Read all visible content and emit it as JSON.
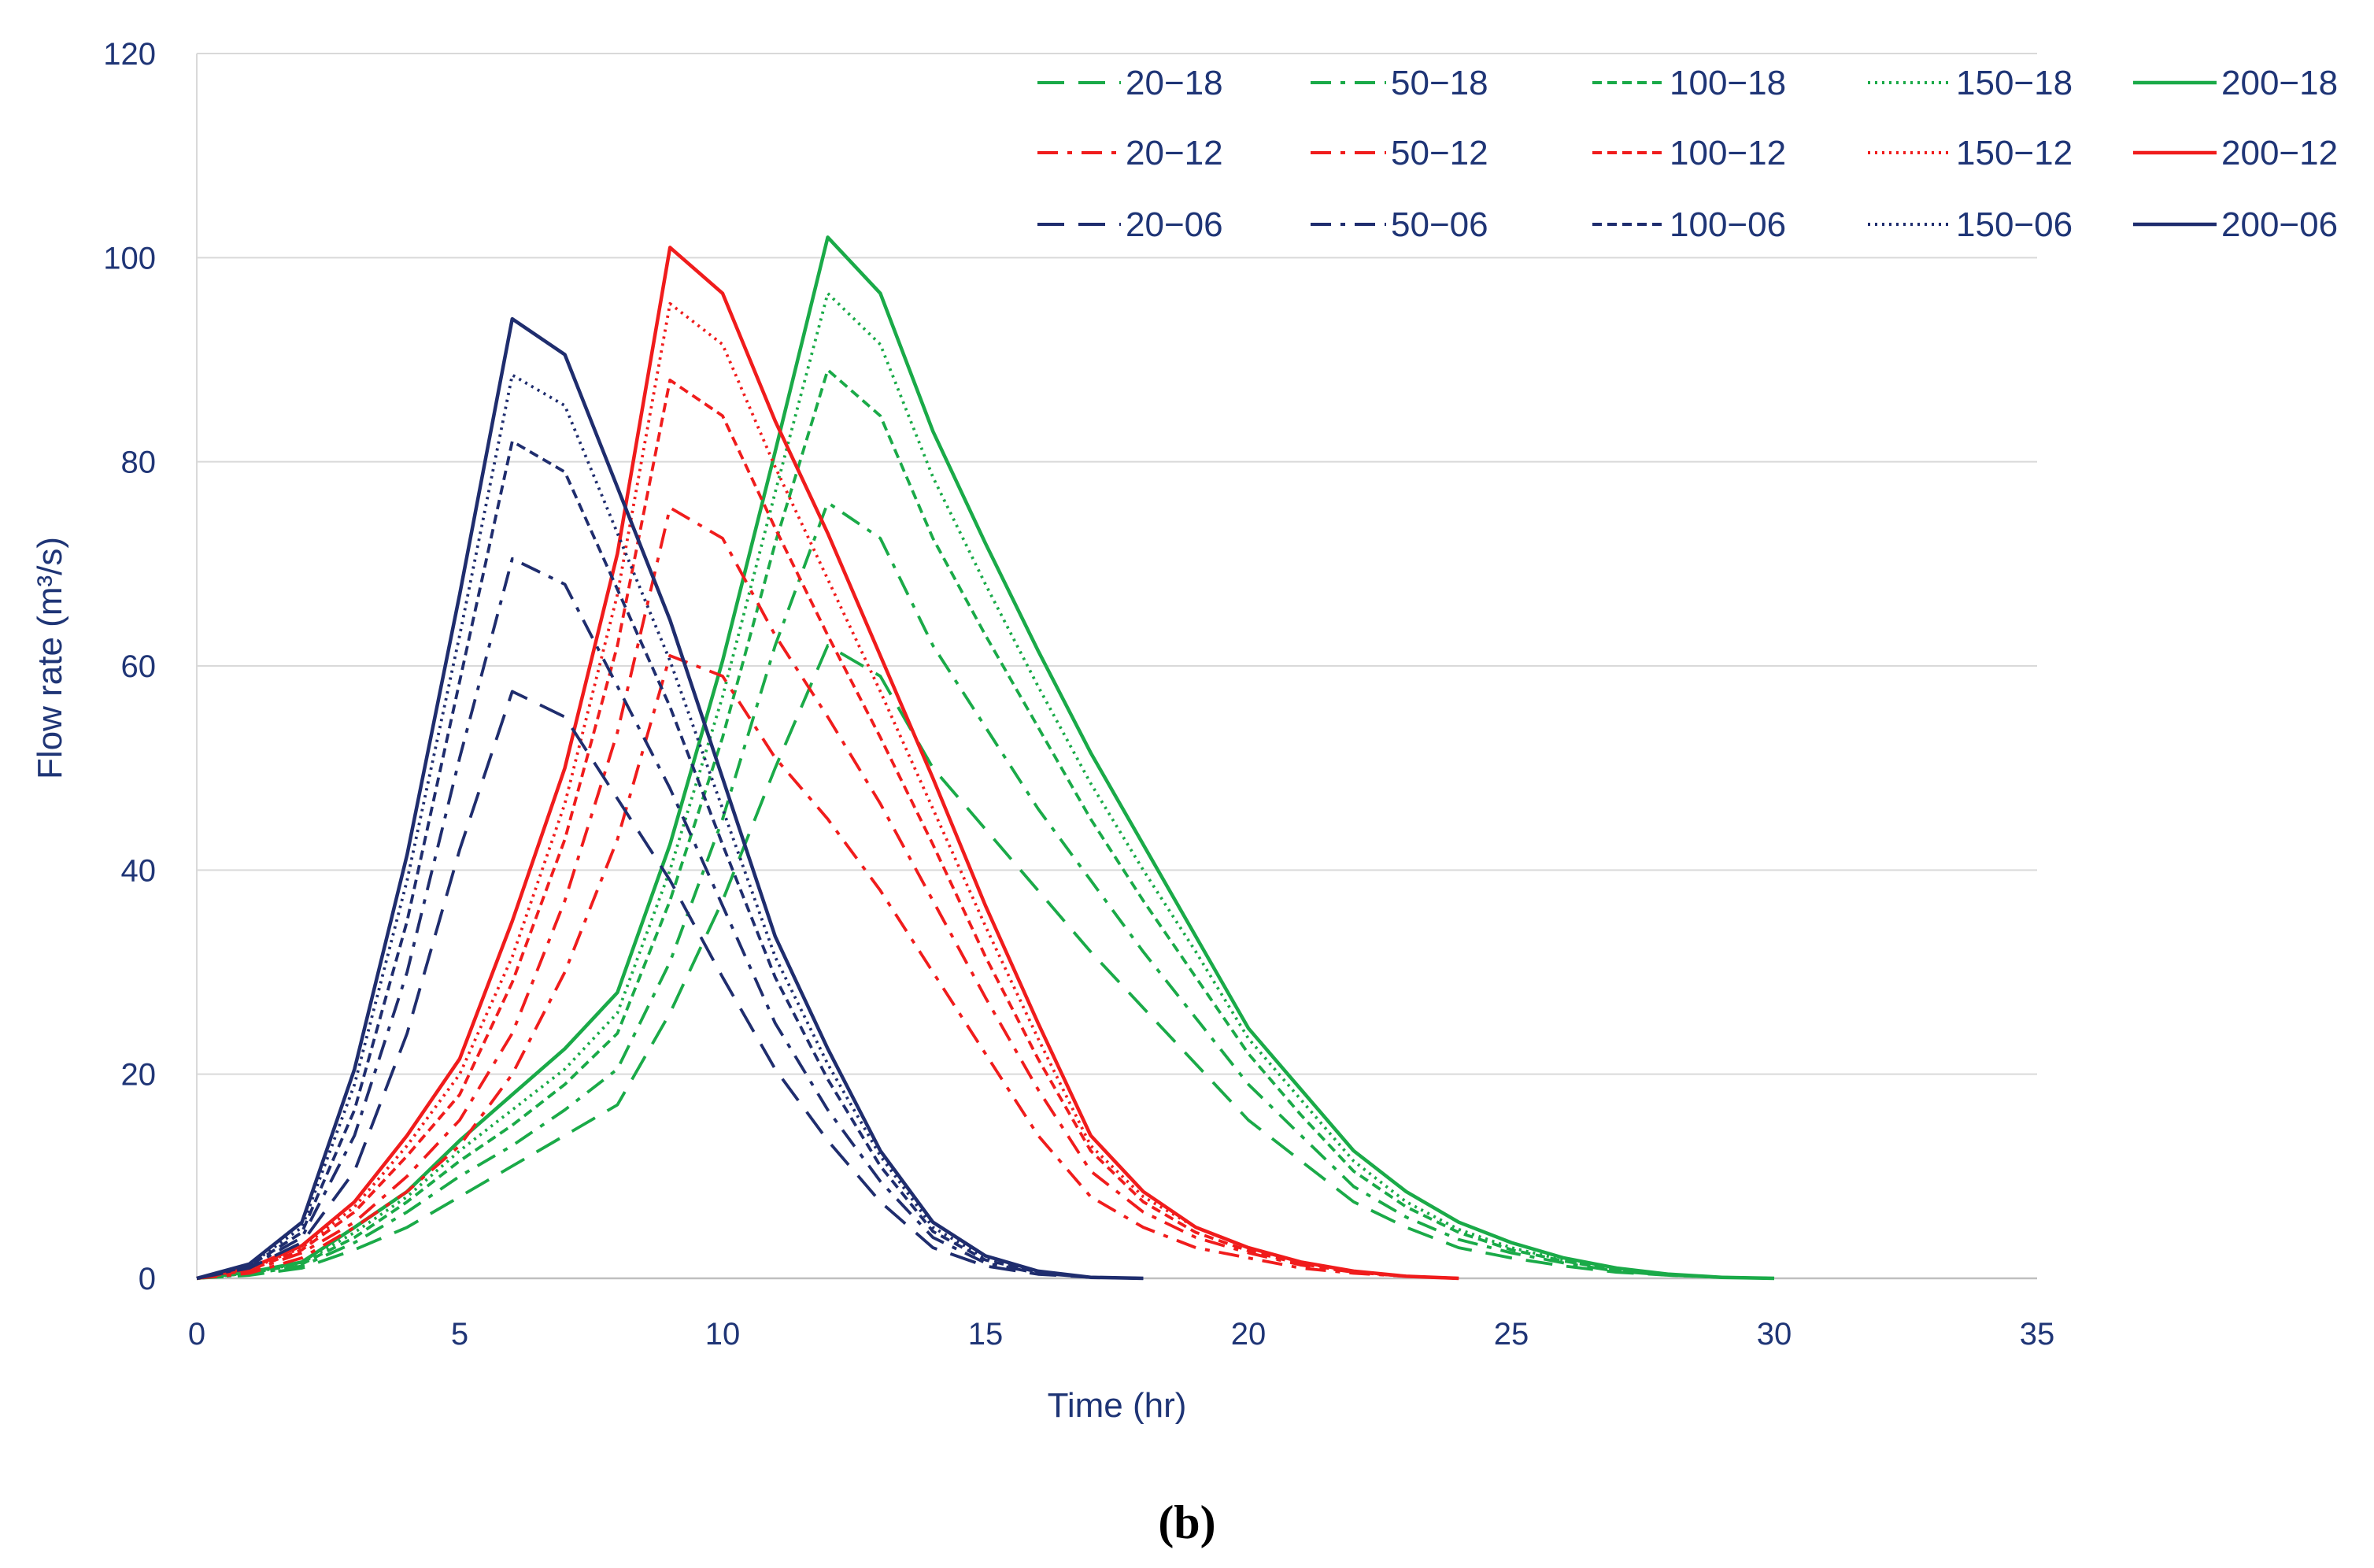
{
  "chart_data": {
    "type": "line",
    "title": "",
    "panel_label": "(b)",
    "xlabel": "Time (hr)",
    "ylabel": "Flow rate (m³/s)",
    "xlim": [
      0,
      35
    ],
    "ylim": [
      0,
      120
    ],
    "xticks": [
      0,
      5,
      10,
      15,
      20,
      25,
      30,
      35
    ],
    "yticks": [
      0,
      20,
      40,
      60,
      80,
      100,
      120
    ],
    "grid": "horizontal",
    "legend_position": "top-right",
    "colors": {
      "18": "#1aaa48",
      "12": "#f01c1c",
      "06": "#1f2d6e",
      "axis_text": "#1f3576",
      "grid": "#d9d9d9"
    },
    "series": [
      {
        "name": "20−18",
        "group": "18",
        "dash": "long-dash",
        "x": [
          0,
          1,
          2,
          3,
          4,
          5,
          6,
          7,
          8,
          9,
          10,
          11,
          12,
          13,
          14,
          15,
          16,
          17,
          18,
          19,
          20,
          21,
          22,
          23,
          24,
          25,
          26,
          27,
          28,
          29,
          30
        ],
        "y": [
          0,
          0.3,
          1,
          2.8,
          5,
          8,
          11,
          14,
          17,
          26,
          37,
          50,
          62,
          59,
          50,
          44,
          38,
          32,
          26.5,
          21,
          15.5,
          11.5,
          7.5,
          5,
          3,
          2,
          1.2,
          0.6,
          0.3,
          0.1,
          0
        ]
      },
      {
        "name": "50−18",
        "group": "18",
        "dash": "dash-dot",
        "x": [
          0,
          1,
          2,
          3,
          4,
          5,
          6,
          7,
          8,
          9,
          10,
          11,
          12,
          13,
          14,
          15,
          16,
          17,
          18,
          19,
          20,
          21,
          22,
          23,
          24,
          25,
          26,
          27,
          28,
          29,
          30
        ],
        "y": [
          0,
          0.4,
          1.2,
          3.5,
          6.5,
          10,
          13,
          16.5,
          20.5,
          31,
          45,
          62,
          76,
          72.5,
          62,
          54,
          46,
          39,
          32,
          25.5,
          19,
          14,
          9,
          6,
          3.8,
          2.5,
          1.5,
          0.7,
          0.3,
          0.1,
          0
        ]
      },
      {
        "name": "100−18",
        "group": "18",
        "dash": "short-dash",
        "x": [
          0,
          1,
          2,
          3,
          4,
          5,
          6,
          7,
          8,
          9,
          10,
          11,
          12,
          13,
          14,
          15,
          16,
          17,
          18,
          19,
          20,
          21,
          22,
          23,
          24,
          25,
          26,
          27,
          28,
          29,
          30
        ],
        "y": [
          0,
          0.5,
          1.4,
          4,
          7.5,
          11.5,
          15,
          19,
          24,
          37,
          53,
          72,
          89,
          84.5,
          72.5,
          63,
          54,
          45,
          37,
          29.5,
          22,
          16,
          10.5,
          7,
          4.5,
          2.8,
          1.7,
          0.8,
          0.3,
          0.1,
          0
        ]
      },
      {
        "name": "150−18",
        "group": "18",
        "dash": "dotted",
        "x": [
          0,
          1,
          2,
          3,
          4,
          5,
          6,
          7,
          8,
          9,
          10,
          11,
          12,
          13,
          14,
          15,
          16,
          17,
          18,
          19,
          20,
          21,
          22,
          23,
          24,
          25,
          26,
          27,
          28,
          29,
          30
        ],
        "y": [
          0,
          0.5,
          1.5,
          4.5,
          8,
          12.5,
          16.5,
          20.5,
          26,
          40,
          57,
          77,
          96.5,
          91.5,
          78.5,
          68,
          58,
          48.5,
          40,
          32,
          23.5,
          17.5,
          11.5,
          7.5,
          4.8,
          3,
          1.8,
          0.9,
          0.4,
          0.1,
          0
        ]
      },
      {
        "name": "200−18",
        "group": "18",
        "dash": "solid",
        "x": [
          0,
          1,
          2,
          3,
          4,
          5,
          6,
          7,
          8,
          9,
          10,
          11,
          12,
          13,
          14,
          15,
          16,
          17,
          18,
          19,
          20,
          21,
          22,
          23,
          24,
          25,
          26,
          27,
          28,
          29,
          30
        ],
        "y": [
          0,
          0.6,
          1.6,
          5,
          8.5,
          13.5,
          18,
          22.5,
          28,
          42.5,
          60.5,
          81,
          102,
          96.5,
          83,
          72,
          61.5,
          51.5,
          42.5,
          33.5,
          24.5,
          18.5,
          12.5,
          8.5,
          5.5,
          3.5,
          2,
          1,
          0.4,
          0.1,
          0
        ]
      },
      {
        "name": "20−12",
        "group": "12",
        "dash": "dash-dot",
        "x": [
          0,
          1,
          2,
          3,
          4,
          5,
          6,
          7,
          8,
          9,
          10,
          11,
          12,
          13,
          14,
          15,
          16,
          17,
          18,
          19,
          20,
          21,
          22,
          23,
          24
        ],
        "y": [
          0,
          0.5,
          2,
          5,
          8.5,
          13,
          20,
          30,
          43,
          61,
          59,
          51,
          45,
          38,
          30,
          22,
          14,
          8,
          5,
          3,
          2,
          1,
          0.5,
          0.2,
          0
        ]
      },
      {
        "name": "50−12",
        "group": "12",
        "dash": "dash-dot",
        "x": [
          0,
          1,
          2,
          3,
          4,
          5,
          6,
          7,
          8,
          9,
          10,
          11,
          12,
          13,
          14,
          15,
          16,
          17,
          18,
          19,
          20,
          21,
          22,
          23,
          24
        ],
        "y": [
          0,
          0.7,
          2.5,
          5.5,
          10,
          15.5,
          24,
          37,
          53.5,
          75.5,
          72.5,
          63,
          55,
          46.5,
          37,
          27.5,
          18.5,
          10.5,
          6.5,
          4,
          2.5,
          1.3,
          0.6,
          0.2,
          0
        ]
      },
      {
        "name": "100−12",
        "group": "12",
        "dash": "short-dash",
        "x": [
          0,
          1,
          2,
          3,
          4,
          5,
          6,
          7,
          8,
          9,
          10,
          11,
          12,
          13,
          14,
          15,
          16,
          17,
          18,
          19,
          20,
          21,
          22,
          23,
          24
        ],
        "y": [
          0,
          0.8,
          2.8,
          6.5,
          12,
          18,
          29,
          43,
          62,
          88,
          84.5,
          73.5,
          63,
          53,
          42.5,
          31.5,
          21.5,
          12.5,
          7.5,
          4.5,
          2.7,
          1.4,
          0.6,
          0.2,
          0
        ]
      },
      {
        "name": "150−12",
        "group": "12",
        "dash": "dotted",
        "x": [
          0,
          1,
          2,
          3,
          4,
          5,
          6,
          7,
          8,
          9,
          10,
          11,
          12,
          13,
          14,
          15,
          16,
          17,
          18,
          19,
          20,
          21,
          22,
          23,
          24
        ],
        "y": [
          0,
          0.9,
          3,
          7,
          13,
          20,
          31.5,
          46.5,
          67,
          95.5,
          91.5,
          79.5,
          68.5,
          57.5,
          46,
          34.5,
          23.5,
          13,
          8,
          5,
          3,
          1.5,
          0.7,
          0.2,
          0
        ]
      },
      {
        "name": "200−12",
        "group": "12",
        "dash": "solid",
        "x": [
          0,
          1,
          2,
          3,
          4,
          5,
          6,
          7,
          8,
          9,
          10,
          11,
          12,
          13,
          14,
          15,
          16,
          17,
          18,
          19,
          20,
          21,
          22,
          23,
          24
        ],
        "y": [
          0,
          1,
          3.2,
          7.5,
          14,
          21.5,
          35,
          50,
          71,
          101,
          96.5,
          84,
          73,
          61,
          49,
          36.5,
          25,
          14,
          8.5,
          5,
          3,
          1.6,
          0.7,
          0.2,
          0
        ]
      },
      {
        "name": "20−06",
        "group": "06",
        "dash": "long-dash",
        "x": [
          0,
          1,
          2,
          3,
          4,
          5,
          6,
          7,
          8,
          9,
          10,
          11,
          12,
          13,
          14,
          15,
          16,
          17,
          18
        ],
        "y": [
          0,
          1,
          3.5,
          10.5,
          24,
          42,
          57.5,
          55,
          47,
          39,
          29.5,
          20.5,
          13.5,
          7.5,
          3,
          1.2,
          0.4,
          0.1,
          0
        ]
      },
      {
        "name": "50−06",
        "group": "06",
        "dash": "dash-dot",
        "x": [
          0,
          1,
          2,
          3,
          4,
          5,
          6,
          7,
          8,
          9,
          10,
          11,
          12,
          13,
          14,
          15,
          16,
          17,
          18
        ],
        "y": [
          0,
          1.1,
          4,
          14,
          30,
          51,
          70.5,
          68,
          58,
          48,
          36.5,
          25,
          16.5,
          9.5,
          4,
          1.5,
          0.5,
          0.1,
          0
        ]
      },
      {
        "name": "100−06",
        "group": "06",
        "dash": "short-dash",
        "x": [
          0,
          1,
          2,
          3,
          4,
          5,
          6,
          7,
          8,
          9,
          10,
          11,
          12,
          13,
          14,
          15,
          16,
          17,
          18
        ],
        "y": [
          0,
          1.2,
          4.5,
          16.5,
          35,
          58.5,
          82,
          79,
          67.5,
          56,
          42.5,
          29.5,
          19.5,
          11,
          4.6,
          1.8,
          0.6,
          0.1,
          0
        ]
      },
      {
        "name": "150−06",
        "group": "06",
        "dash": "dotted",
        "x": [
          0,
          1,
          2,
          3,
          4,
          5,
          6,
          7,
          8,
          9,
          10,
          11,
          12,
          13,
          14,
          15,
          16,
          17,
          18
        ],
        "y": [
          0,
          1.3,
          5,
          19,
          39,
          63,
          88.5,
          85.5,
          73,
          60.5,
          46,
          31.5,
          21,
          12,
          5,
          2,
          0.6,
          0.1,
          0
        ]
      },
      {
        "name": "200−06",
        "group": "06",
        "dash": "solid",
        "x": [
          0,
          1,
          2,
          3,
          4,
          5,
          6,
          7,
          8,
          9,
          10,
          11,
          12,
          13,
          14,
          15,
          16,
          17,
          18
        ],
        "y": [
          0,
          1.4,
          5.5,
          20.5,
          41.5,
          67,
          94,
          90.5,
          77.5,
          64.5,
          49,
          33.5,
          22.5,
          12.5,
          5.5,
          2.2,
          0.7,
          0.1,
          0
        ]
      }
    ]
  }
}
